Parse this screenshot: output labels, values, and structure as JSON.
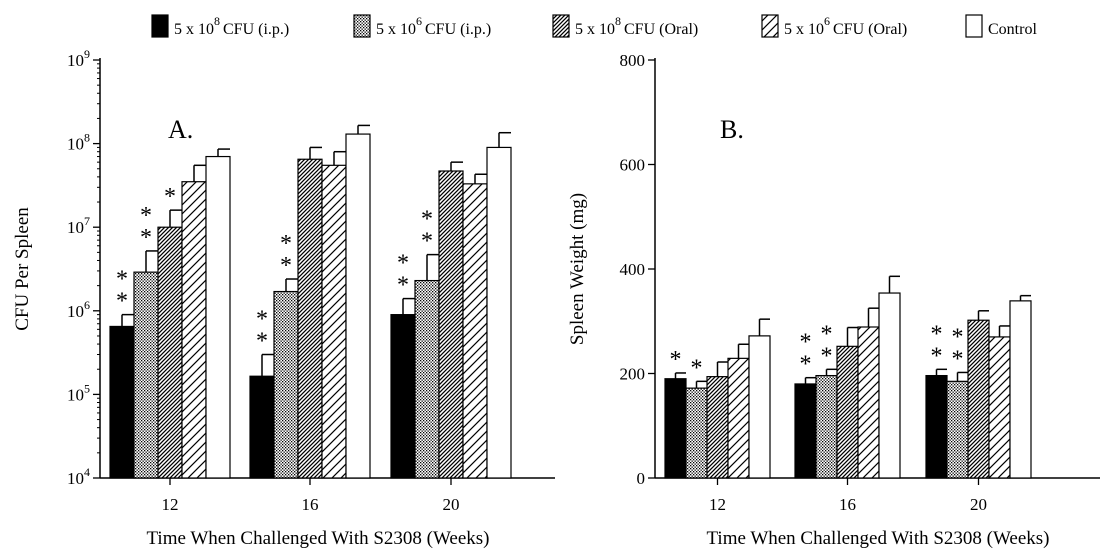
{
  "legend": {
    "entries": [
      {
        "prefix": "5 x 10",
        "exp": "8",
        "suffix": "CFU (i.p.)",
        "pattern": "solid"
      },
      {
        "prefix": "5 x 10",
        "exp": "6",
        "suffix": "CFU (i.p.)",
        "pattern": "dots"
      },
      {
        "prefix": "5 x 10",
        "exp": "8",
        "suffix": "CFU (Oral)",
        "pattern": "dense-hatch"
      },
      {
        "prefix": "5 x 10",
        "exp": "6",
        "suffix": "CFU (Oral)",
        "pattern": "sparse-hatch"
      },
      {
        "prefix": "Control",
        "exp": "",
        "suffix": "",
        "pattern": "white"
      }
    ]
  },
  "chart_data": [
    {
      "type": "bar",
      "panel_label": "A.",
      "xlabel": "Time When Challenged With S2308 (Weeks)",
      "ylabel": "CFU Per Spleen",
      "yscale": "log",
      "ylim": [
        10000,
        1000000000
      ],
      "yticks": [
        {
          "base": "10",
          "exp": "4",
          "value": 10000
        },
        {
          "base": "10",
          "exp": "5",
          "value": 100000
        },
        {
          "base": "10",
          "exp": "6",
          "value": 1000000
        },
        {
          "base": "10",
          "exp": "7",
          "value": 10000000
        },
        {
          "base": "10",
          "exp": "8",
          "value": 100000000
        },
        {
          "base": "10",
          "exp": "9",
          "value": 1000000000
        }
      ],
      "categories": [
        "12",
        "16",
        "20"
      ],
      "series": [
        {
          "name": "5 x 10^8 CFU (i.p.)",
          "values": [
            650000,
            165000,
            900000
          ],
          "errors": [
            900000,
            300000,
            1400000
          ],
          "significance": [
            "**",
            "**",
            "**"
          ]
        },
        {
          "name": "5 x 10^6 CFU (i.p.)",
          "values": [
            2900000,
            1700000,
            2300000
          ],
          "errors": [
            5200000,
            2400000,
            4700000
          ],
          "significance": [
            "**",
            "**",
            "**"
          ]
        },
        {
          "name": "5 x 10^8 CFU (Oral)",
          "values": [
            10000000,
            65000000,
            47000000
          ],
          "errors": [
            16000000,
            90000000,
            60000000
          ],
          "significance": [
            "*",
            "",
            ""
          ]
        },
        {
          "name": "5 x 10^6 CFU (Oral)",
          "values": [
            35000000,
            55000000,
            33000000
          ],
          "errors": [
            55000000,
            80000000,
            43000000
          ],
          "significance": [
            "",
            "",
            ""
          ]
        },
        {
          "name": "Control",
          "values": [
            70000000,
            130000000,
            90000000
          ],
          "errors": [
            86000000,
            165000000,
            135000000
          ],
          "significance": [
            "",
            "",
            ""
          ]
        }
      ]
    },
    {
      "type": "bar",
      "panel_label": "B.",
      "xlabel": "Time When Challenged With S2308 (Weeks)",
      "ylabel": "Spleen Weight (mg)",
      "yscale": "linear",
      "ylim": [
        0,
        800
      ],
      "yticks": [
        {
          "base": "0",
          "exp": "",
          "value": 0
        },
        {
          "base": "200",
          "exp": "",
          "value": 200
        },
        {
          "base": "400",
          "exp": "",
          "value": 400
        },
        {
          "base": "600",
          "exp": "",
          "value": 600
        },
        {
          "base": "800",
          "exp": "",
          "value": 800
        }
      ],
      "categories": [
        "12",
        "16",
        "20"
      ],
      "series": [
        {
          "name": "5 x 10^8 CFU (i.p.)",
          "values": [
            190,
            180,
            196
          ],
          "errors": [
            201,
            192,
            208
          ],
          "significance": [
            "*",
            "**",
            "**"
          ]
        },
        {
          "name": "5 x 10^6 CFU (i.p.)",
          "values": [
            172,
            196,
            185
          ],
          "errors": [
            185,
            208,
            202
          ],
          "significance": [
            "*",
            "**",
            "**"
          ]
        },
        {
          "name": "5 x 10^8 CFU (Oral)",
          "values": [
            194,
            252,
            302
          ],
          "errors": [
            222,
            288,
            320
          ],
          "significance": [
            "",
            "",
            ""
          ]
        },
        {
          "name": "5 x 10^6 CFU (Oral)",
          "values": [
            229,
            289,
            270
          ],
          "errors": [
            256,
            325,
            291
          ],
          "significance": [
            "",
            "",
            ""
          ]
        },
        {
          "name": "Control",
          "values": [
            272,
            354,
            339
          ],
          "errors": [
            304,
            386,
            349
          ],
          "significance": [
            "",
            "",
            ""
          ]
        }
      ]
    }
  ]
}
